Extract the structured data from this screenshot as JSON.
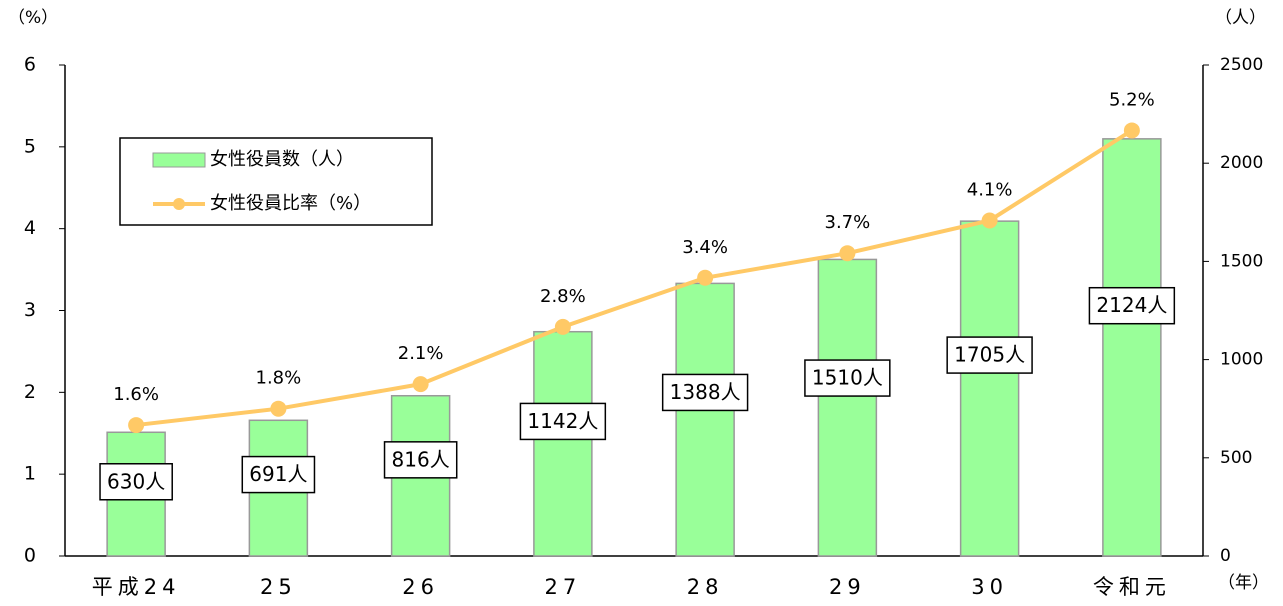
{
  "chart_data": {
    "type": "combo",
    "y_label": "（%）",
    "y2_label": "（人）",
    "x_label": "（年）",
    "categories": [
      "平成24",
      "25",
      "26",
      "27",
      "28",
      "29",
      "30",
      "令和元"
    ],
    "series": [
      {
        "name": "女性役員数（人）",
        "type": "bar",
        "axis": "y2",
        "color": "#99ff99",
        "values": [
          630,
          691,
          816,
          1142,
          1388,
          1510,
          1705,
          2124
        ],
        "value_labels": [
          "630人",
          "691人",
          "816人",
          "1142人",
          "1388人",
          "1510人",
          "1705人",
          "2124人"
        ]
      },
      {
        "name": "女性役員比率（%）",
        "type": "line",
        "axis": "y",
        "color": "#ffc966",
        "values": [
          1.6,
          1.8,
          2.1,
          2.8,
          3.4,
          3.7,
          4.1,
          5.2
        ],
        "value_labels": [
          "1.6%",
          "1.8%",
          "2.1%",
          "2.8%",
          "3.4%",
          "3.7%",
          "4.1%",
          "5.2%"
        ]
      }
    ],
    "ylim": [
      0,
      6
    ],
    "yticks": [
      0,
      1,
      2,
      3,
      4,
      5,
      6
    ],
    "y2lim": [
      0,
      2500
    ],
    "y2ticks": [
      0,
      500,
      1000,
      1500,
      2000,
      2500
    ],
    "legend": "upper left"
  }
}
